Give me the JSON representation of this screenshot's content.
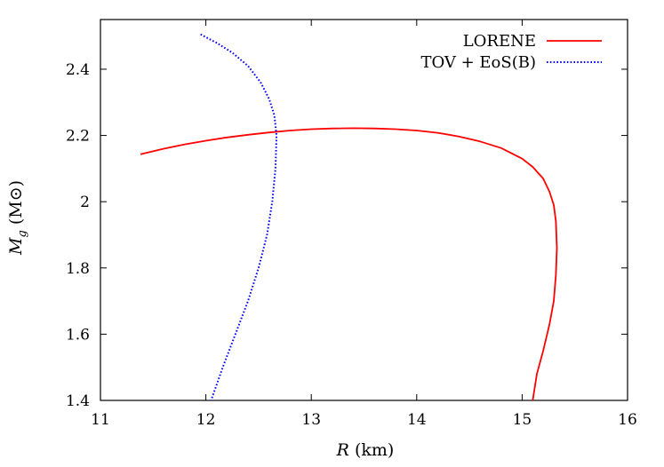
{
  "chart_data": {
    "type": "line",
    "title": "",
    "xlabel": "R (km)",
    "ylabel": "Mg (M⊙)",
    "xlim": [
      11,
      16
    ],
    "ylim": [
      1.4,
      2.55
    ],
    "xticks": [
      "11",
      "12",
      "13",
      "14",
      "15",
      "16"
    ],
    "yticks": [
      "1.4",
      "1.6",
      "1.8",
      "2",
      "2.2",
      "2.4"
    ],
    "grid": false,
    "legend_position": "top-right",
    "series": [
      {
        "name": "LORENE",
        "color": "#ff0000",
        "style": "solid",
        "x": [
          11.38,
          11.6,
          11.8,
          12.0,
          12.2,
          12.4,
          12.6,
          12.8,
          13.0,
          13.2,
          13.4,
          13.6,
          13.8,
          14.0,
          14.2,
          14.4,
          14.6,
          14.8,
          15.0,
          15.1,
          15.2,
          15.26,
          15.3,
          15.32,
          15.33,
          15.32,
          15.3,
          15.26,
          15.2,
          15.14,
          15.1
        ],
        "y": [
          2.143,
          2.16,
          2.173,
          2.184,
          2.194,
          2.202,
          2.209,
          2.215,
          2.219,
          2.221,
          2.222,
          2.221,
          2.219,
          2.215,
          2.208,
          2.197,
          2.182,
          2.162,
          2.13,
          2.105,
          2.07,
          2.03,
          1.99,
          1.94,
          1.86,
          1.78,
          1.7,
          1.63,
          1.55,
          1.48,
          1.4
        ]
      },
      {
        "name": "TOV + EoS(B)",
        "color": "#0000ff",
        "style": "dotted",
        "x": [
          11.95,
          12.1,
          12.25,
          12.4,
          12.52,
          12.6,
          12.65,
          12.67,
          12.66,
          12.63,
          12.58,
          12.5,
          12.4,
          12.28,
          12.16,
          12.05
        ],
        "y": [
          2.505,
          2.48,
          2.45,
          2.41,
          2.36,
          2.31,
          2.26,
          2.2,
          2.1,
          2.0,
          1.9,
          1.8,
          1.7,
          1.6,
          1.5,
          1.4
        ]
      }
    ]
  }
}
